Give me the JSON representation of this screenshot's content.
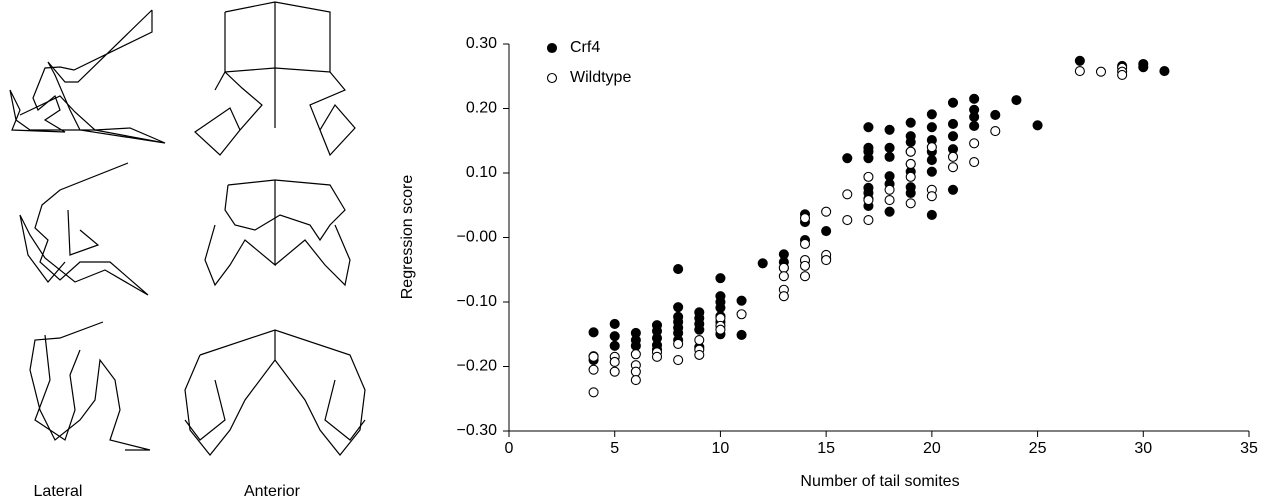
{
  "figure_labels": {
    "lateral": "Lateral",
    "anterior": "Anterior"
  },
  "chart_data": {
    "type": "scatter",
    "xlabel": "Number of tail somites",
    "ylabel": "Regression score",
    "xlim": [
      0,
      35
    ],
    "xticks": [
      0,
      5,
      10,
      15,
      20,
      25,
      30,
      35
    ],
    "ylim": [
      -0.3,
      0.3
    ],
    "yticks": [
      {
        "value": -0.3,
        "label": "−0.30"
      },
      {
        "value": -0.2,
        "label": "−0.20"
      },
      {
        "value": -0.1,
        "label": "−0.10"
      },
      {
        "value": 0,
        "label": "−0.00"
      },
      {
        "value": 0.1,
        "label": "0.10"
      },
      {
        "value": 0.2,
        "label": "0.20"
      },
      {
        "value": 0.3,
        "label": "0.30"
      }
    ],
    "legend": "upper left",
    "series": [
      {
        "name": "Crf4",
        "color": "#000000",
        "marker": "filled",
        "x": [
          4,
          4,
          4,
          5,
          5,
          5,
          6,
          6,
          6,
          7,
          7,
          7,
          7,
          7,
          8,
          8,
          8,
          8,
          8,
          8,
          8,
          9,
          9,
          9,
          9,
          9,
          10,
          10,
          10,
          10,
          10,
          10,
          10,
          11,
          11,
          12,
          13,
          13,
          13,
          14,
          14,
          14,
          14,
          15,
          15,
          16,
          17,
          17,
          17,
          17,
          17,
          17,
          17,
          17,
          18,
          18,
          18,
          18,
          18,
          18,
          19,
          19,
          19,
          19,
          19,
          19,
          19,
          19,
          20,
          20,
          20,
          20,
          20,
          20,
          20,
          21,
          21,
          21,
          21,
          21,
          22,
          22,
          22,
          22,
          23,
          24,
          25,
          27,
          29,
          30,
          30,
          31
        ],
        "values": [
          -0.147,
          -0.184,
          -0.19,
          -0.134,
          -0.153,
          -0.168,
          -0.148,
          -0.159,
          -0.168,
          -0.136,
          -0.145,
          -0.156,
          -0.167,
          -0.174,
          -0.049,
          -0.108,
          -0.123,
          -0.131,
          -0.14,
          -0.148,
          -0.159,
          -0.116,
          -0.125,
          -0.134,
          -0.143,
          -0.17,
          -0.063,
          -0.091,
          -0.1,
          -0.109,
          -0.122,
          -0.131,
          -0.15,
          -0.098,
          -0.151,
          -0.04,
          -0.026,
          -0.038,
          -0.047,
          0.036,
          0.024,
          -0.004,
          -0.036,
          0.01,
          -0.033,
          0.123,
          0.171,
          0.139,
          0.133,
          0.123,
          0.077,
          0.069,
          0.06,
          0.049,
          0.167,
          0.139,
          0.125,
          0.095,
          0.083,
          0.04,
          0.178,
          0.157,
          0.148,
          0.133,
          0.114,
          0.102,
          0.078,
          0.069,
          0.191,
          0.171,
          0.151,
          0.133,
          0.12,
          0.102,
          0.035,
          0.209,
          0.176,
          0.157,
          0.137,
          0.074,
          0.215,
          0.198,
          0.187,
          0.173,
          0.19,
          0.213,
          0.174,
          0.274,
          0.266,
          0.269,
          0.264,
          0.258
        ]
      },
      {
        "name": "Wildtype",
        "color": "#000000",
        "marker": "open",
        "x": [
          4,
          4,
          4,
          5,
          5,
          5,
          6,
          6,
          6,
          6,
          7,
          7,
          8,
          8,
          9,
          9,
          9,
          10,
          10,
          10,
          11,
          13,
          13,
          13,
          13,
          14,
          14,
          14,
          14,
          14,
          15,
          15,
          15,
          16,
          16,
          17,
          17,
          17,
          18,
          18,
          19,
          19,
          19,
          19,
          20,
          20,
          20,
          21,
          21,
          22,
          22,
          23,
          27,
          28,
          29,
          29,
          29
        ],
        "values": [
          -0.185,
          -0.205,
          -0.24,
          -0.185,
          -0.193,
          -0.208,
          -0.181,
          -0.198,
          -0.208,
          -0.221,
          -0.178,
          -0.185,
          -0.165,
          -0.19,
          -0.159,
          -0.174,
          -0.182,
          -0.125,
          -0.137,
          -0.143,
          -0.119,
          -0.047,
          -0.06,
          -0.081,
          -0.091,
          0.03,
          -0.01,
          -0.035,
          -0.044,
          -0.06,
          0.04,
          -0.027,
          -0.035,
          0.067,
          0.027,
          0.094,
          0.058,
          0.027,
          0.074,
          0.058,
          0.133,
          0.114,
          0.094,
          0.053,
          0.14,
          0.074,
          0.064,
          0.125,
          0.109,
          0.146,
          0.117,
          0.165,
          0.258,
          0.257,
          0.263,
          0.257,
          0.252
        ]
      }
    ]
  }
}
